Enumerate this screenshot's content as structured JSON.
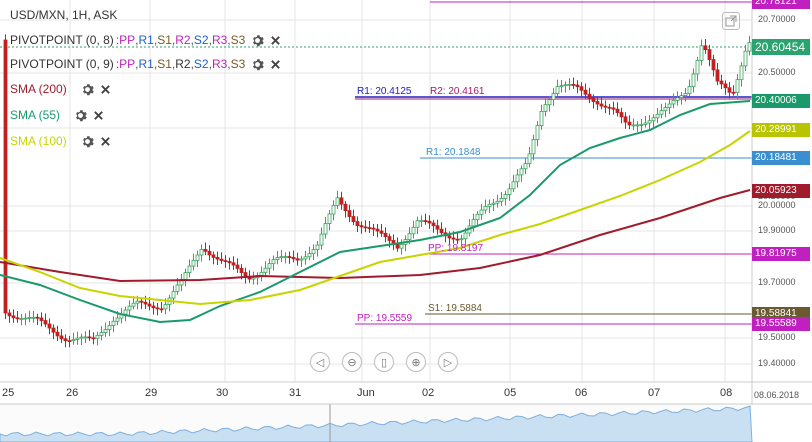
{
  "symbol_title": "USD/MXN, 1H, ASK",
  "pivot_indicators": [
    {
      "name": "PIVOTPOINT (0, 8)",
      "sep": " : ",
      "items": [
        {
          "label": "PP",
          "color": "#c020c0"
        },
        {
          "label": "R1",
          "color": "#2060d0"
        },
        {
          "label": "S1",
          "color": "#7a5c20"
        },
        {
          "label": "R2",
          "color": "#c020c0"
        },
        {
          "label": "S2",
          "color": "#2060d0"
        },
        {
          "label": "R3",
          "color": "#c020c0"
        },
        {
          "label": "S3",
          "color": "#7a5c20"
        }
      ]
    },
    {
      "name": "PIVOTPOINT (0, 9)",
      "sep": " : ",
      "items": [
        {
          "label": "PP",
          "color": "#c020c0"
        },
        {
          "label": "R1",
          "color": "#2060d0"
        },
        {
          "label": "S1",
          "color": "#7a5c20"
        },
        {
          "label": "R2",
          "color": "#333333"
        },
        {
          "label": "S2",
          "color": "#2060d0"
        },
        {
          "label": "R3",
          "color": "#c020c0"
        },
        {
          "label": "S3",
          "color": "#7a5c20"
        }
      ]
    }
  ],
  "sma_indicators": [
    {
      "name": "SMA (200)",
      "color": "#a01c2c"
    },
    {
      "name": "SMA (55)",
      "color": "#1a9a6a"
    },
    {
      "name": "SMA (100)",
      "color": "#c8d400"
    }
  ],
  "price_scale": [
    "20.70000",
    "20.50000",
    "20.10000",
    "20.00000",
    "19.90000",
    "19.70000",
    "19.50000",
    "19.40000"
  ],
  "price_tags": [
    {
      "value": "20.78121",
      "color": "#c020c0"
    },
    {
      "value": "20.60454",
      "color": "#2aa36e"
    },
    {
      "value": "20.40006",
      "color": "#1a9a6a"
    },
    {
      "value": "20.28991",
      "color": "#b8c400"
    },
    {
      "value": "20.18481",
      "color": "#3a8fd0"
    },
    {
      "value": "20.05923",
      "color": "#a01c2c"
    },
    {
      "value": "19.81975",
      "color": "#c020c0"
    },
    {
      "value": "19.58841",
      "color": "#6a5a30"
    },
    {
      "value": "19.55589",
      "color": "#c020c0"
    }
  ],
  "level_labels": [
    {
      "text": "R1: 20.4125",
      "color": "#2020c0"
    },
    {
      "text": "R2: 20.4161",
      "color": "#a01c6c"
    },
    {
      "text": "R1: 20.1848",
      "color": "#3a8fd0"
    },
    {
      "text": "PP: 19.8197",
      "color": "#c020c0"
    },
    {
      "text": "S1: 19.5884",
      "color": "#6a5a30"
    },
    {
      "text": "PP: 19.5559",
      "color": "#c020c0"
    }
  ],
  "date_axis": [
    "25",
    "26",
    "29",
    "30",
    "31",
    "Jun",
    "02",
    "05",
    "06",
    "07",
    "08"
  ],
  "date_corner": "08.06.2018",
  "nav_buttons": [
    "scroll-left",
    "zoom-out",
    "reset-zoom",
    "zoom-in",
    "scroll-right"
  ]
}
